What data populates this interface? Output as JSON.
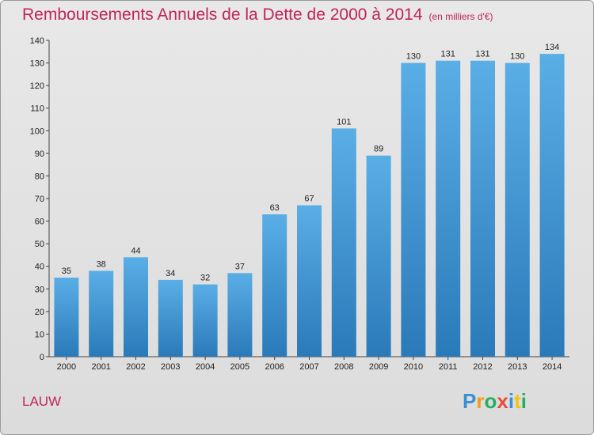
{
  "title": "Remboursements Annuels de la Dette de 2000 à 2014",
  "subtitle": "(en milliers d'€)",
  "town": "LAUW",
  "brand": "Proxiti",
  "colors": {
    "accent": "#c0245c",
    "bar_top": "#5aaee6",
    "bar_bottom": "#2a7ab9",
    "background": "#e2e2e2"
  },
  "chart_data": {
    "type": "bar",
    "title": "Remboursements Annuels de la Dette de 2000 à 2014",
    "subtitle": "(en milliers d'€)",
    "categories": [
      "2000",
      "2001",
      "2002",
      "2003",
      "2004",
      "2005",
      "2006",
      "2007",
      "2008",
      "2009",
      "2010",
      "2011",
      "2012",
      "2013",
      "2014"
    ],
    "values": [
      35,
      38,
      44,
      34,
      32,
      37,
      63,
      67,
      101,
      89,
      130,
      131,
      131,
      130,
      134
    ],
    "ylim": [
      0,
      140
    ],
    "yticks": [
      0,
      10,
      20,
      30,
      40,
      50,
      60,
      70,
      80,
      90,
      100,
      110,
      120,
      130,
      140
    ],
    "grid": false,
    "data_labels": true
  }
}
